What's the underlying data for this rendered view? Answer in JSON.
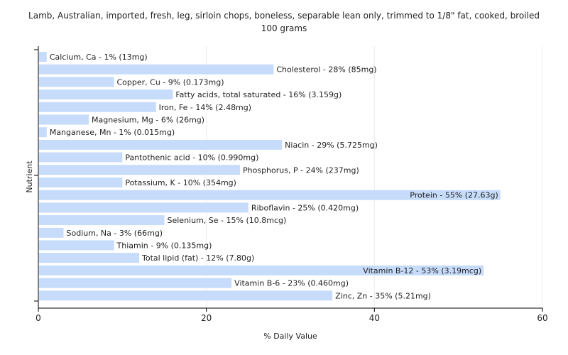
{
  "chart_data": {
    "type": "bar",
    "orientation": "horizontal",
    "title_lines": [
      "Lamb, Australian, imported, fresh, leg, sirloin chops, boneless, separable lean only, trimmed to 1/8\" fat, cooked, broiled",
      "100 grams"
    ],
    "xlabel": "% Daily Value",
    "ylabel": "Nutrient",
    "xlim": [
      0,
      60
    ],
    "xticks": [
      0,
      20,
      40,
      60
    ],
    "grid": true,
    "bar_color": "#c6dcfa",
    "categories": [
      "Calcium, Ca",
      "Cholesterol",
      "Copper, Cu",
      "Fatty acids, total saturated",
      "Iron, Fe",
      "Magnesium, Mg",
      "Manganese, Mn",
      "Niacin",
      "Pantothenic acid",
      "Phosphorus, P",
      "Potassium, K",
      "Protein",
      "Riboflavin",
      "Selenium, Se",
      "Sodium, Na",
      "Thiamin",
      "Total lipid (fat)",
      "Vitamin B-12",
      "Vitamin B-6",
      "Zinc, Zn"
    ],
    "values": [
      1,
      28,
      9,
      16,
      14,
      6,
      1,
      29,
      10,
      24,
      10,
      55,
      25,
      15,
      3,
      9,
      12,
      53,
      23,
      35
    ],
    "bar_labels": [
      "Calcium, Ca - 1% (13mg)",
      "Cholesterol - 28% (85mg)",
      "Copper, Cu - 9% (0.173mg)",
      "Fatty acids, total saturated - 16% (3.159g)",
      "Iron, Fe - 14% (2.48mg)",
      "Magnesium, Mg - 6% (26mg)",
      "Manganese, Mn - 1% (0.015mg)",
      "Niacin - 29% (5.725mg)",
      "Pantothenic acid - 10% (0.990mg)",
      "Phosphorus, P - 24% (237mg)",
      "Potassium, K - 10% (354mg)",
      "Protein - 55% (27.63g)",
      "Riboflavin - 25% (0.420mg)",
      "Selenium, Se - 15% (10.8mcg)",
      "Sodium, Na - 3% (66mg)",
      "Thiamin - 9% (0.135mg)",
      "Total lipid (fat) - 12% (7.80g)",
      "Vitamin B-12 - 53% (3.19mcg)",
      "Vitamin B-6 - 23% (0.460mg)",
      "Zinc, Zn - 35% (5.21mg)"
    ]
  }
}
